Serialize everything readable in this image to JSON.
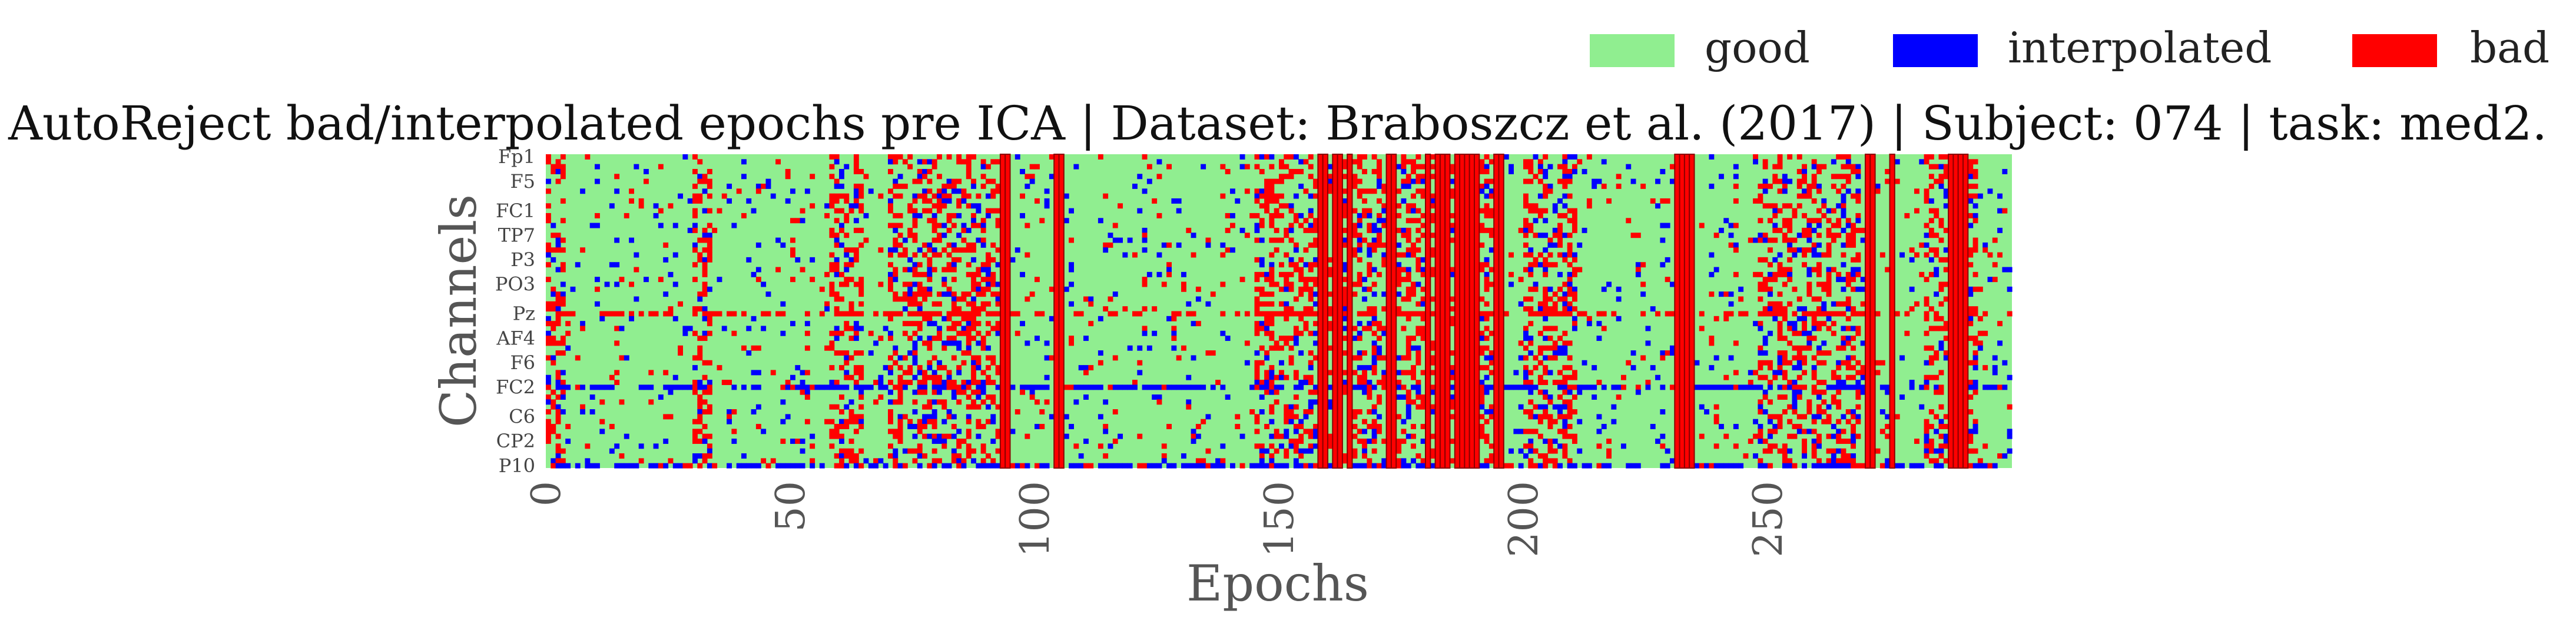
{
  "chart_data": {
    "type": "heatmap",
    "title": "AutoReject bad/interpolated epochs pre ICA | Dataset: Braboszcz et al. (2017) | Subject: 074 | task: med2.",
    "xlabel": "Epochs",
    "ylabel": "Channels",
    "legend": {
      "placement": "top-right",
      "entries": [
        {
          "label": "good",
          "color": "#90ee90"
        },
        {
          "label": "interpolated",
          "color": "#0000ff"
        },
        {
          "label": "bad",
          "color": "#ff0000"
        }
      ]
    },
    "xlim": [
      0,
      300
    ],
    "x_ticks": [
      0,
      50,
      100,
      150,
      200,
      250
    ],
    "y_tick_labels": [
      "Fp1",
      "F5",
      "FC1",
      "TP7",
      "P3",
      "PO3",
      "Pz",
      "AF4",
      "F6",
      "FC2",
      "C6",
      "CP2",
      "P10"
    ],
    "n_channels": 64,
    "n_epochs": 300,
    "bad_epochs": [
      93,
      94,
      104,
      105,
      158,
      159,
      161,
      162,
      164,
      172,
      173,
      180,
      182,
      183,
      184,
      186,
      187,
      188,
      189,
      190,
      194,
      195,
      231,
      232,
      233,
      234,
      270,
      271,
      275,
      287,
      288,
      289,
      290
    ],
    "bad_channels": [
      "Pz"
    ],
    "interpolated_channels": [
      "FC2",
      "P10"
    ]
  },
  "colors": {
    "good": "#90ee90",
    "interpolated": "#0000ff",
    "bad": "#ff0000",
    "bad_epoch_outline": "#8b0000"
  }
}
